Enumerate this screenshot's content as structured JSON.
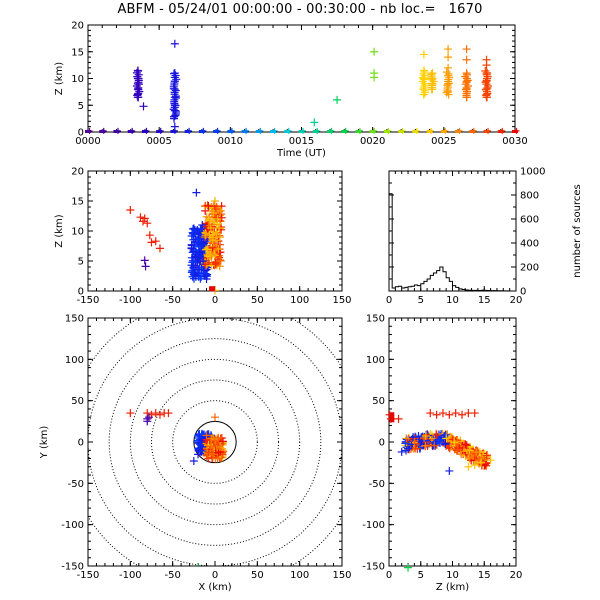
{
  "figure": {
    "title": "ABFM - 05/24/01 00:00:00 - 00:30:00 - nb loc.=   1670"
  },
  "chart_data": [
    {
      "id": "time-height",
      "type": "scatter",
      "xlabel": "Time (UT)",
      "ylabel": "Z (km)",
      "x_ticklabels": [
        "0000",
        "0005",
        "0010",
        "0015",
        "0020",
        "0025",
        "0030"
      ],
      "x_tick_minutes": [
        0,
        5,
        10,
        15,
        20,
        25,
        30
      ],
      "xlim_minutes": [
        0,
        30
      ],
      "ylim": [
        0,
        20
      ],
      "yticks": [
        0,
        5,
        10,
        15,
        20
      ],
      "grid": false,
      "color_encoding": "time (rainbow: violet at 00:00 to red at 00:30)",
      "marker": "+",
      "points": [
        {
          "t": 3.5,
          "z": 11.5
        },
        {
          "t": 3.5,
          "z": 10.0
        },
        {
          "t": 3.5,
          "z": 9.0
        },
        {
          "t": 3.5,
          "z": 8.0
        },
        {
          "t": 3.5,
          "z": 7.0
        },
        {
          "t": 3.5,
          "z": 6.5
        },
        {
          "t": 3.9,
          "z": 4.8
        },
        {
          "t": 6.1,
          "z": 16.5
        },
        {
          "t": 6.1,
          "z": 11.0
        },
        {
          "t": 6.1,
          "z": 9.5
        },
        {
          "t": 6.1,
          "z": 8.0
        },
        {
          "t": 6.1,
          "z": 6.5
        },
        {
          "t": 6.1,
          "z": 5.0
        },
        {
          "t": 6.1,
          "z": 4.0
        },
        {
          "t": 6.1,
          "z": 3.0
        },
        {
          "t": 6.1,
          "z": 1.0
        },
        {
          "t": 15.9,
          "z": 1.8
        },
        {
          "t": 17.5,
          "z": 6.0
        },
        {
          "t": 20.1,
          "z": 15.0
        },
        {
          "t": 20.1,
          "z": 11.0
        },
        {
          "t": 20.1,
          "z": 10.2
        },
        {
          "t": 23.6,
          "z": 14.5
        },
        {
          "t": 23.6,
          "z": 11.5
        },
        {
          "t": 23.6,
          "z": 10.0
        },
        {
          "t": 23.6,
          "z": 8.0
        },
        {
          "t": 23.6,
          "z": 7.0
        },
        {
          "t": 24.2,
          "z": 11.0
        },
        {
          "t": 24.2,
          "z": 10.0
        },
        {
          "t": 24.2,
          "z": 9.0
        },
        {
          "t": 24.2,
          "z": 8.0
        },
        {
          "t": 25.3,
          "z": 15.5
        },
        {
          "t": 25.3,
          "z": 14.0
        },
        {
          "t": 25.3,
          "z": 12.0
        },
        {
          "t": 25.3,
          "z": 10.5
        },
        {
          "t": 25.3,
          "z": 9.0
        },
        {
          "t": 25.3,
          "z": 7.5
        },
        {
          "t": 26.6,
          "z": 15.5
        },
        {
          "t": 26.6,
          "z": 13.5
        },
        {
          "t": 26.6,
          "z": 11.0
        },
        {
          "t": 26.6,
          "z": 9.5
        },
        {
          "t": 26.6,
          "z": 8.0
        },
        {
          "t": 26.6,
          "z": 6.5
        },
        {
          "t": 28.0,
          "z": 13.5
        },
        {
          "t": 28.0,
          "z": 12.5
        },
        {
          "t": 28.0,
          "z": 11.0
        },
        {
          "t": 28.0,
          "z": 9.5
        },
        {
          "t": 28.0,
          "z": 8.0
        },
        {
          "t": 28.0,
          "z": 7.0
        },
        {
          "t": 28.0,
          "z": 6.5
        }
      ],
      "dense_columns": [
        {
          "t": 3.5,
          "z_range": [
            6.5,
            11.5
          ]
        },
        {
          "t": 6.1,
          "z_range": [
            2.5,
            11.0
          ]
        },
        {
          "t": 23.6,
          "z_range": [
            7.0,
            11.5
          ]
        },
        {
          "t": 24.2,
          "z_range": [
            8.0,
            11.0
          ]
        },
        {
          "t": 25.3,
          "z_range": [
            7.0,
            11.5
          ]
        },
        {
          "t": 26.6,
          "z_range": [
            6.5,
            11.0
          ]
        },
        {
          "t": 28.0,
          "z_range": [
            6.5,
            11.5
          ]
        }
      ],
      "baseline_markers_minutes": [
        0,
        1,
        2,
        3,
        4,
        5,
        6,
        7,
        8,
        9,
        10,
        11,
        12,
        13,
        14,
        15,
        16,
        17,
        18,
        19,
        20,
        21,
        22,
        23,
        24,
        25,
        26,
        27,
        28,
        29,
        30
      ]
    },
    {
      "id": "x-z",
      "type": "scatter",
      "xlabel": "",
      "ylabel": "Z (km)",
      "xlim": [
        -150,
        150
      ],
      "ylim": [
        0,
        20
      ],
      "xticks": [
        -150,
        -100,
        -50,
        0,
        50,
        100,
        150
      ],
      "yticks": [
        0,
        5,
        10,
        15,
        20
      ],
      "color_encoding": "time",
      "marker": "+",
      "points": [
        {
          "x": -100,
          "z": 13.5
        },
        {
          "x": -88,
          "z": 12.3
        },
        {
          "x": -85,
          "z": 11.6
        },
        {
          "x": -83,
          "z": 12.1
        },
        {
          "x": -80,
          "z": 11.3
        },
        {
          "x": -77,
          "z": 9.3
        },
        {
          "x": -75,
          "z": 8.1
        },
        {
          "x": -70,
          "z": 8.3
        },
        {
          "x": -65,
          "z": 7.1
        },
        {
          "x": -83,
          "z": 5.1
        },
        {
          "x": -82,
          "z": 4.1
        },
        {
          "x": -22,
          "z": 16.4
        },
        {
          "x": -15,
          "z": 11.0
        },
        {
          "x": -20,
          "z": 9.5
        },
        {
          "x": -13,
          "z": 8.0
        },
        {
          "x": -18,
          "z": 6.5
        },
        {
          "x": -14,
          "z": 5.0
        },
        {
          "x": -20,
          "z": 3.5
        },
        {
          "x": -25,
          "z": 4.0
        },
        {
          "x": -12,
          "z": 2.5
        },
        {
          "x": -10,
          "z": 2.0
        },
        {
          "x": 0,
          "z": 15.0
        },
        {
          "x": -2,
          "z": 13.0
        },
        {
          "x": 3,
          "z": 12.0
        },
        {
          "x": -5,
          "z": 10.5
        },
        {
          "x": 2,
          "z": 9.5
        },
        {
          "x": -3,
          "z": 8.5
        },
        {
          "x": 4,
          "z": 7.0
        },
        {
          "x": -6,
          "z": 6.0
        },
        {
          "x": 5,
          "z": 10.5
        },
        {
          "x": -1,
          "z": 11.5
        },
        {
          "x": 0,
          "z": 0.1
        }
      ],
      "dense_clusters": [
        {
          "x_range": [
            -28,
            -8
          ],
          "z_range": [
            2.0,
            10.5
          ]
        },
        {
          "x_range": [
            -12,
            8
          ],
          "z_range": [
            4.0,
            14.5
          ]
        }
      ]
    },
    {
      "id": "altitude-histogram",
      "type": "line",
      "xlabel": "",
      "ylabel": "number of sources",
      "y_axis_side": "right",
      "xlim": [
        0,
        20
      ],
      "ylim": [
        0,
        1000
      ],
      "xticks": [
        0,
        5,
        10,
        15,
        20
      ],
      "yticks": [
        0,
        200,
        400,
        600,
        800,
        1000
      ],
      "bin_km": 0.5,
      "values": [
        810,
        25,
        35,
        40,
        25,
        30,
        35,
        40,
        50,
        45,
        60,
        80,
        100,
        130,
        150,
        170,
        200,
        160,
        110,
        80,
        45,
        30,
        18,
        12,
        8,
        6,
        5,
        5,
        4,
        6,
        5,
        4,
        3,
        3,
        2,
        2,
        1,
        1,
        0,
        0
      ]
    },
    {
      "id": "x-y-plan",
      "type": "scatter",
      "xlabel": "X (km)",
      "ylabel": "Y (km)",
      "xlim": [
        -150,
        150
      ],
      "ylim": [
        -150,
        150
      ],
      "xticks": [
        -150,
        -100,
        -50,
        0,
        50,
        100,
        150
      ],
      "yticks": [
        -150,
        -100,
        -50,
        0,
        50,
        100,
        150
      ],
      "range_rings_km": [
        25,
        50,
        75,
        100,
        125,
        150,
        175
      ],
      "solid_ring_km": 25,
      "color_encoding": "time",
      "marker": "+",
      "points": [
        {
          "x": -100,
          "y": 35
        },
        {
          "x": -80,
          "y": 35
        },
        {
          "x": -75,
          "y": 33
        },
        {
          "x": -70,
          "y": 35
        },
        {
          "x": -65,
          "y": 33
        },
        {
          "x": -60,
          "y": 35
        },
        {
          "x": -55,
          "y": 35
        },
        {
          "x": -78,
          "y": 30
        },
        {
          "x": -80,
          "y": 25
        },
        {
          "x": -80,
          "y": 28
        },
        {
          "x": 0,
          "y": 30
        },
        {
          "x": -5,
          "y": -5
        },
        {
          "x": 0,
          "y": 2
        },
        {
          "x": 5,
          "y": -5
        },
        {
          "x": -2,
          "y": -15
        },
        {
          "x": 3,
          "y": -20
        },
        {
          "x": -20,
          "y": -15
        },
        {
          "x": -25,
          "y": -23
        },
        {
          "x": 4,
          "y": 5
        },
        {
          "x": -10,
          "y": 8
        },
        {
          "x": -20,
          "y": -152
        }
      ],
      "dense_clusters": [
        {
          "x_range": [
            -20,
            -3
          ],
          "y_range": [
            -12,
            10
          ]
        },
        {
          "x_range": [
            -10,
            10
          ],
          "y_range": [
            -20,
            5
          ]
        }
      ]
    },
    {
      "id": "z-y",
      "type": "scatter",
      "xlabel": "Z (km)",
      "ylabel": "",
      "xlim": [
        0,
        20
      ],
      "ylim": [
        -150,
        150
      ],
      "xticks": [
        0,
        5,
        10,
        15,
        20
      ],
      "yticks": [
        -150,
        -100,
        -50,
        0,
        50,
        100,
        150
      ],
      "color_encoding": "time",
      "marker": "+",
      "points": [
        {
          "z": 0.1,
          "y": 33
        },
        {
          "z": 0.3,
          "y": 28
        },
        {
          "z": 1.5,
          "y": 28
        },
        {
          "z": 6.5,
          "y": 35
        },
        {
          "z": 7.5,
          "y": 33
        },
        {
          "z": 8.5,
          "y": 35
        },
        {
          "z": 9.5,
          "y": 33
        },
        {
          "z": 10.5,
          "y": 35
        },
        {
          "z": 11.5,
          "y": 33
        },
        {
          "z": 12.5,
          "y": 35
        },
        {
          "z": 13.5,
          "y": 35
        },
        {
          "z": 2.0,
          "y": -12
        },
        {
          "z": 3.0,
          "y": -8
        },
        {
          "z": 16.0,
          "y": -22
        },
        {
          "z": 14.5,
          "y": -25
        },
        {
          "z": 13.5,
          "y": -28
        },
        {
          "z": 12.5,
          "y": -30
        },
        {
          "z": 9.5,
          "y": -35
        },
        {
          "z": 3.0,
          "y": -152
        }
      ],
      "dense_band": [
        {
          "z": 3.0,
          "y_center": -3
        },
        {
          "z": 5.0,
          "y_center": 0
        },
        {
          "z": 7.0,
          "y_center": 3
        },
        {
          "z": 9.0,
          "y_center": 2
        },
        {
          "z": 11.0,
          "y_center": -5
        },
        {
          "z": 13.0,
          "y_center": -15
        },
        {
          "z": 15.0,
          "y_center": -22
        }
      ]
    }
  ]
}
